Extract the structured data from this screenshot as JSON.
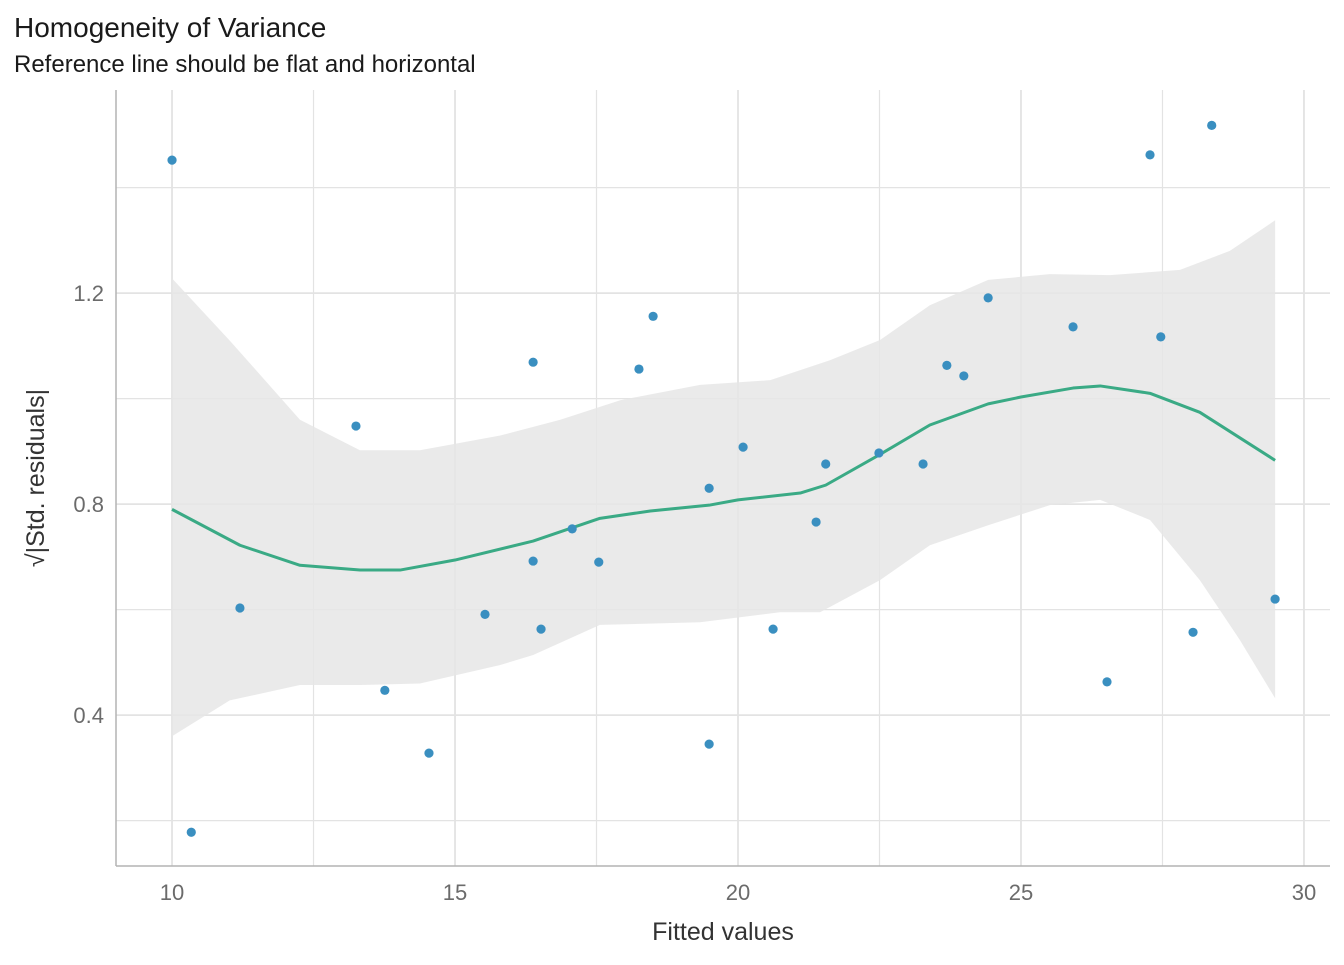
{
  "chart_data": {
    "type": "scatter",
    "title": "Homogeneity of Variance",
    "subtitle": "Reference line should be flat and horizontal",
    "xlabel": "Fitted values",
    "ylabel": "√|Std. residuals|",
    "xlim": [
      9.01,
      30.46
    ],
    "ylim": [
      0.114,
      1.585
    ],
    "x_ticks": [
      10,
      15,
      20,
      25,
      30
    ],
    "x_tick_labels": [
      "10",
      "15",
      "20",
      "25",
      "30"
    ],
    "y_ticks": [
      0.4,
      0.8,
      1.2
    ],
    "y_tick_labels": [
      "0.4",
      "0.8",
      "1.2"
    ],
    "x_minor": [
      12.5,
      17.5,
      22.5,
      27.5
    ],
    "y_minor": [
      0.2,
      0.6,
      1.0,
      1.4
    ],
    "grid": true,
    "colors": {
      "points": "#3a8fc0",
      "line": "#3aaa85",
      "band": "#e6e6e6",
      "grid": "#e3e3e3",
      "axis": "#b3b3b3"
    },
    "points": [
      [
        10.0,
        1.452
      ],
      [
        10.34,
        0.178
      ],
      [
        11.2,
        0.603
      ],
      [
        13.25,
        0.948
      ],
      [
        13.76,
        0.447
      ],
      [
        14.54,
        0.328
      ],
      [
        15.53,
        0.591
      ],
      [
        16.38,
        1.069
      ],
      [
        16.38,
        0.692
      ],
      [
        16.52,
        0.563
      ],
      [
        17.07,
        0.753
      ],
      [
        17.54,
        0.69
      ],
      [
        18.25,
        1.056
      ],
      [
        18.5,
        1.156
      ],
      [
        19.49,
        0.83
      ],
      [
        19.49,
        0.345
      ],
      [
        20.09,
        0.908
      ],
      [
        20.62,
        0.563
      ],
      [
        21.38,
        0.766
      ],
      [
        21.55,
        0.876
      ],
      [
        22.49,
        0.897
      ],
      [
        23.27,
        0.876
      ],
      [
        23.69,
        1.063
      ],
      [
        23.99,
        1.043
      ],
      [
        24.42,
        1.191
      ],
      [
        25.92,
        1.136
      ],
      [
        26.52,
        0.463
      ],
      [
        27.28,
        1.462
      ],
      [
        27.47,
        1.117
      ],
      [
        28.04,
        0.557
      ],
      [
        28.37,
        1.518
      ],
      [
        29.49,
        0.62
      ]
    ],
    "smooth": [
      [
        10.0,
        0.79
      ],
      [
        11.2,
        0.722
      ],
      [
        12.26,
        0.684
      ],
      [
        13.32,
        0.675
      ],
      [
        14.03,
        0.675
      ],
      [
        15.0,
        0.694
      ],
      [
        16.38,
        0.73
      ],
      [
        17.56,
        0.773
      ],
      [
        18.45,
        0.787
      ],
      [
        19.49,
        0.798
      ],
      [
        20.0,
        0.808
      ],
      [
        21.1,
        0.821
      ],
      [
        21.55,
        0.836
      ],
      [
        22.49,
        0.893
      ],
      [
        23.39,
        0.95
      ],
      [
        24.42,
        0.99
      ],
      [
        25.0,
        1.003
      ],
      [
        25.92,
        1.02
      ],
      [
        26.4,
        1.024
      ],
      [
        27.28,
        1.01
      ],
      [
        28.16,
        0.974
      ],
      [
        29.49,
        0.883
      ]
    ],
    "band_upper": [
      [
        10.0,
        1.228
      ],
      [
        11.02,
        1.11
      ],
      [
        12.26,
        0.96
      ],
      [
        13.32,
        0.902
      ],
      [
        14.38,
        0.902
      ],
      [
        15.8,
        0.93
      ],
      [
        16.86,
        0.96
      ],
      [
        17.92,
        0.997
      ],
      [
        19.33,
        1.026
      ],
      [
        20.57,
        1.035
      ],
      [
        21.63,
        1.073
      ],
      [
        22.51,
        1.111
      ],
      [
        23.39,
        1.177
      ],
      [
        24.42,
        1.225
      ],
      [
        25.51,
        1.236
      ],
      [
        26.57,
        1.234
      ],
      [
        27.81,
        1.244
      ],
      [
        28.69,
        1.28
      ],
      [
        29.49,
        1.338
      ]
    ],
    "band_lower": [
      [
        10.0,
        0.36
      ],
      [
        11.02,
        0.428
      ],
      [
        12.26,
        0.457
      ],
      [
        13.32,
        0.457
      ],
      [
        14.38,
        0.46
      ],
      [
        15.8,
        0.495
      ],
      [
        16.38,
        0.514
      ],
      [
        17.56,
        0.571
      ],
      [
        19.33,
        0.576
      ],
      [
        20.74,
        0.595
      ],
      [
        21.45,
        0.595
      ],
      [
        22.51,
        0.656
      ],
      [
        23.39,
        0.722
      ],
      [
        24.42,
        0.76
      ],
      [
        25.51,
        0.798
      ],
      [
        26.4,
        0.808
      ],
      [
        27.28,
        0.77
      ],
      [
        28.16,
        0.656
      ],
      [
        28.87,
        0.542
      ],
      [
        29.49,
        0.432
      ]
    ]
  }
}
